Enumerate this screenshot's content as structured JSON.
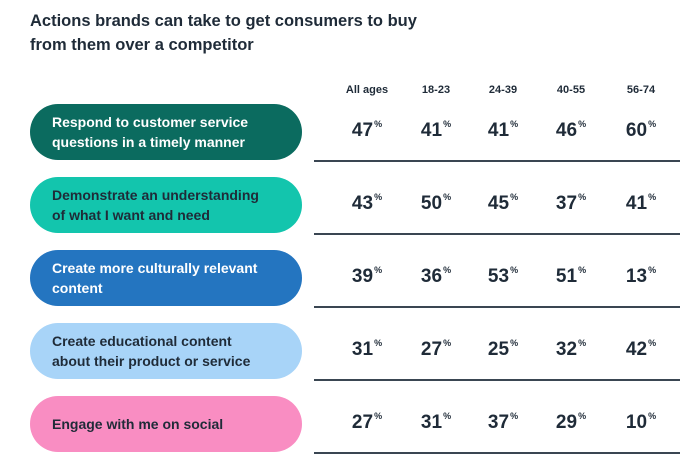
{
  "chart_data": {
    "type": "table",
    "title_lines": [
      "Actions brands can take to get consumers to buy",
      "from them over a competitor"
    ],
    "columns": [
      "All ages",
      "18-23",
      "24-39",
      "40-55",
      "56-74"
    ],
    "unit": "%",
    "rows": [
      {
        "label_lines": [
          "Respond to customer service",
          "questions in a timely manner"
        ],
        "values": [
          47,
          41,
          41,
          46,
          60
        ],
        "bg": "#0b6b5f",
        "fg": "#ffffff"
      },
      {
        "label_lines": [
          "Demonstrate an understanding",
          "of what I want and need"
        ],
        "values": [
          43,
          50,
          45,
          37,
          41
        ],
        "bg": "#13c5ad",
        "fg": "#1f2b38"
      },
      {
        "label_lines": [
          "Create more culturally relevant",
          "content"
        ],
        "values": [
          39,
          36,
          53,
          51,
          13
        ],
        "bg": "#2475c0",
        "fg": "#ffffff"
      },
      {
        "label_lines": [
          "Create educational content",
          "about their product or service"
        ],
        "values": [
          31,
          27,
          25,
          32,
          42
        ],
        "bg": "#a8d4f8",
        "fg": "#1f2b38"
      },
      {
        "label_lines": [
          "Engage with me on social"
        ],
        "values": [
          27,
          31,
          37,
          29,
          10
        ],
        "bg": "#f98dc2",
        "fg": "#1f2b38"
      }
    ]
  }
}
